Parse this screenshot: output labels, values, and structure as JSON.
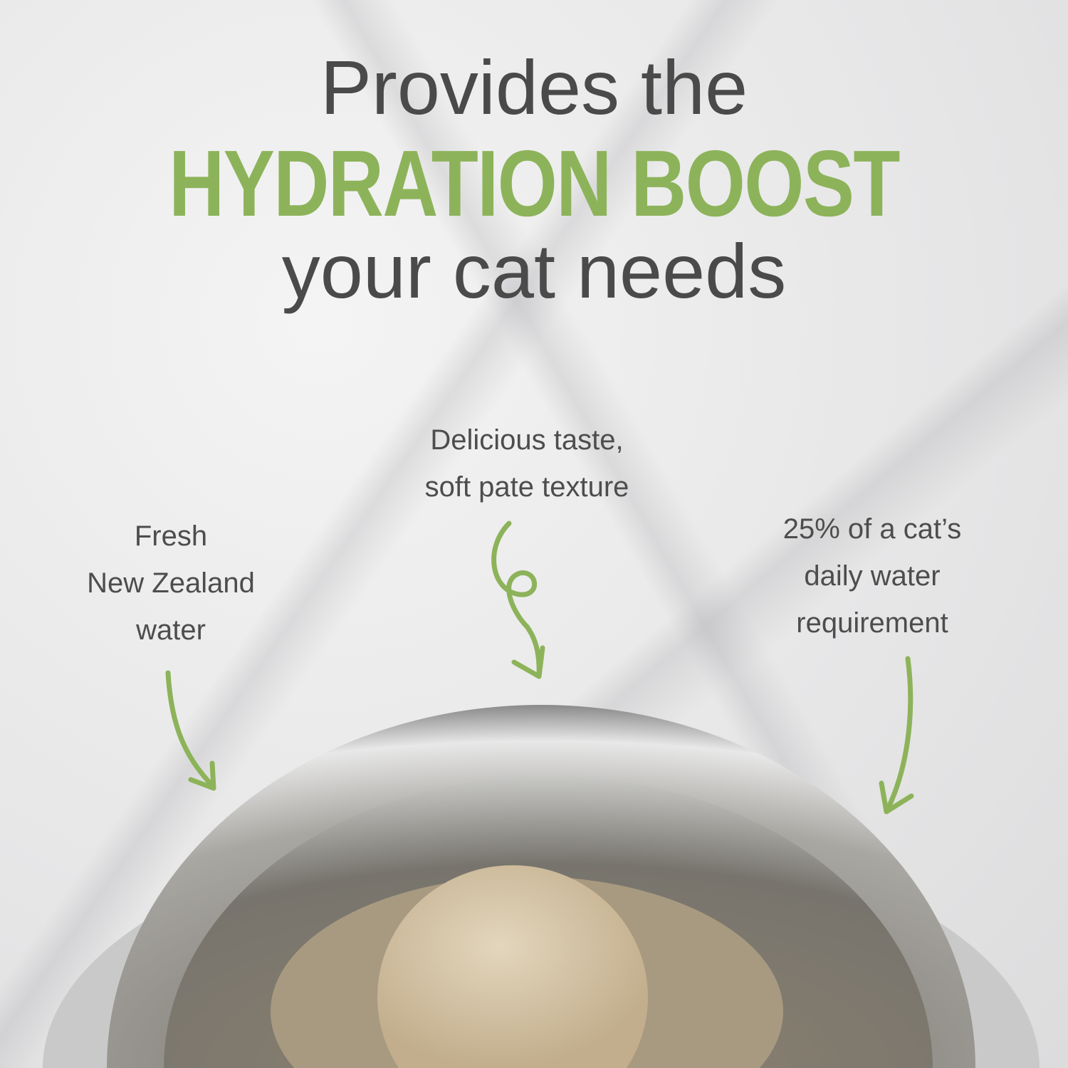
{
  "headline": {
    "line1": "Provides the",
    "line2": "HYDRATION BOOST",
    "line3": "your cat needs"
  },
  "callouts": [
    {
      "lines": [
        "Fresh",
        "New Zealand",
        "water"
      ]
    },
    {
      "lines": [
        "Delicious taste,",
        "soft pate texture"
      ]
    },
    {
      "lines": [
        "25% of a cat’s",
        "daily water",
        "requirement"
      ]
    }
  ],
  "colors": {
    "accent": "#8db35a",
    "text": "#4a4a4a"
  }
}
